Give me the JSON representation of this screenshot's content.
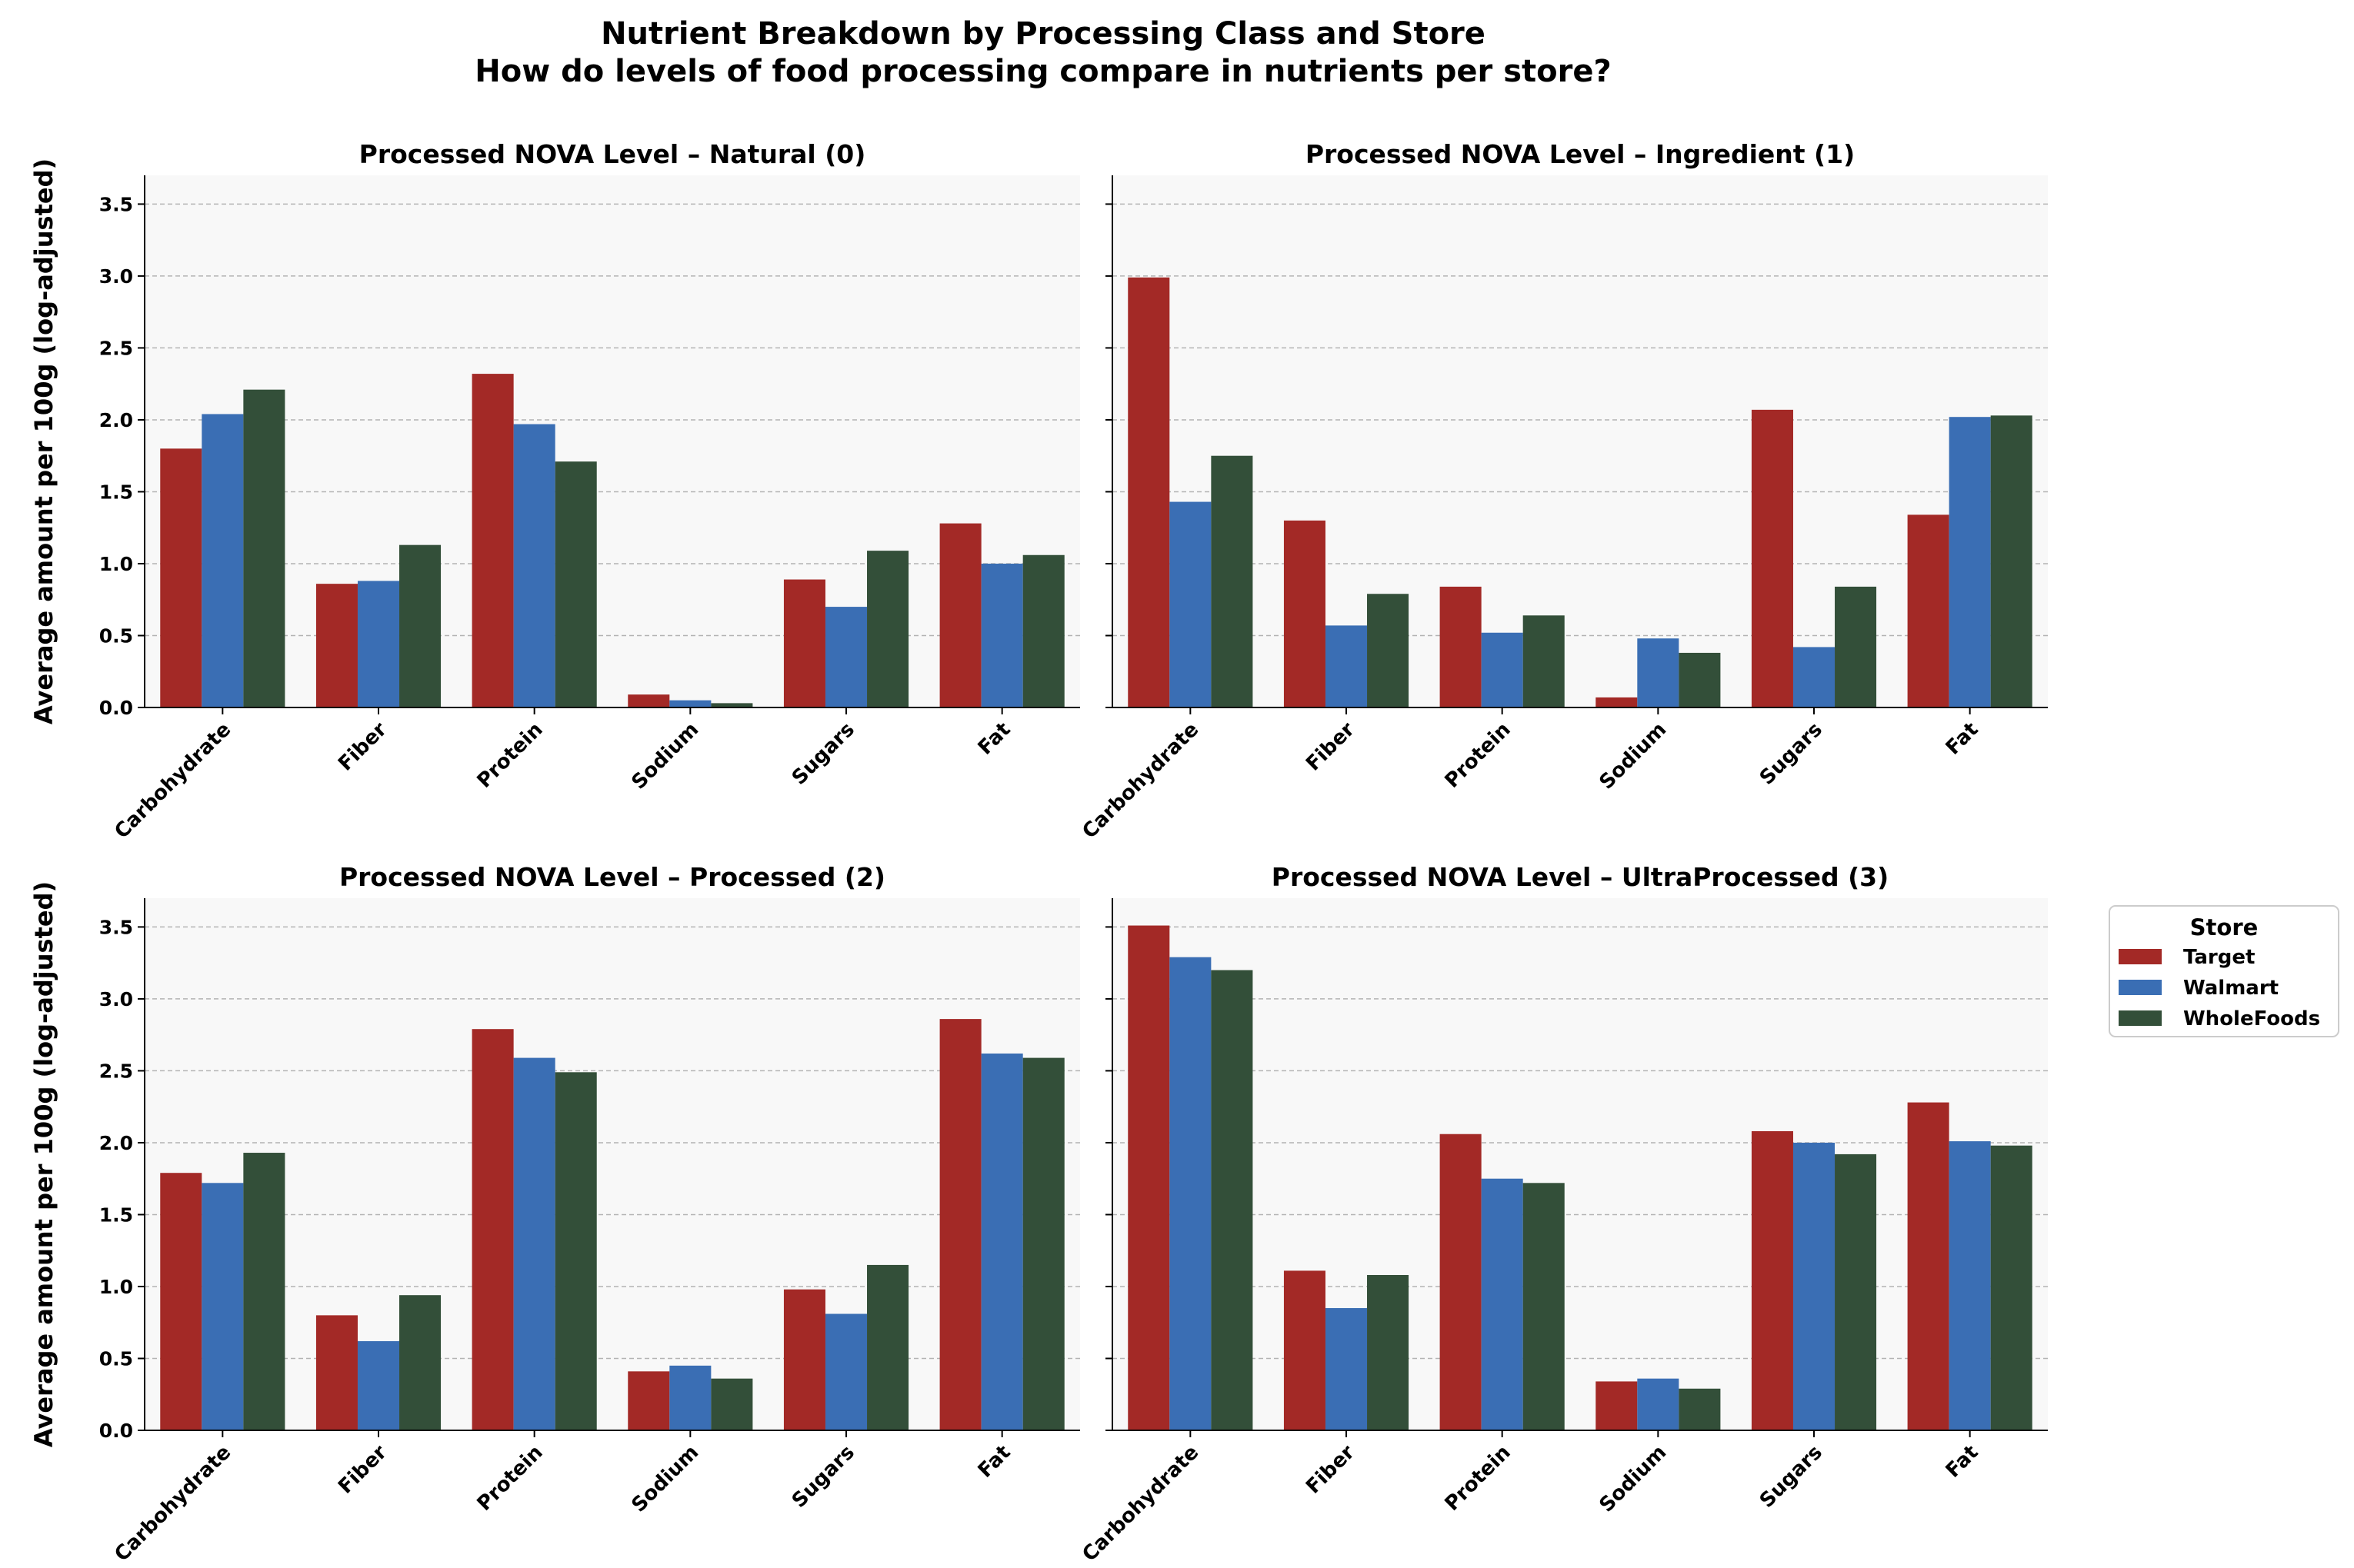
{
  "chart_data": {
    "type": "bar",
    "title": "Nutrient Breakdown by Processing Class and Store",
    "subtitle": "How do levels of food processing compare in nutrients per store?",
    "ylabel": "Average amount per 100g (log-adjusted)",
    "ylim": [
      0,
      3.7
    ],
    "yticks": [
      "0.0",
      "0.5",
      "1.0",
      "1.5",
      "2.0",
      "2.5",
      "3.0",
      "3.5"
    ],
    "grid": "horizontal dashed",
    "categories": [
      "Carbohydrate",
      "Fiber",
      "Protein",
      "Sodium",
      "Sugars",
      "Fat"
    ],
    "legend": {
      "title": "Store",
      "placement": "right",
      "entries": [
        {
          "name": "Target",
          "color": "#a32926"
        },
        {
          "name": "Walmart",
          "color": "#3a6eb4"
        },
        {
          "name": "WholeFoods",
          "color": "#334f39"
        }
      ]
    },
    "panels": [
      {
        "title": "Processed NOVA Level – Natural (0)",
        "series": [
          {
            "name": "Target",
            "values": [
              1.8,
              0.86,
              2.32,
              0.09,
              0.89,
              1.28
            ]
          },
          {
            "name": "Walmart",
            "values": [
              2.04,
              0.88,
              1.97,
              0.05,
              0.7,
              1.0
            ]
          },
          {
            "name": "WholeFoods",
            "values": [
              2.21,
              1.13,
              1.71,
              0.03,
              1.09,
              1.06
            ]
          }
        ]
      },
      {
        "title": "Processed NOVA Level – Ingredient (1)",
        "series": [
          {
            "name": "Target",
            "values": [
              2.99,
              1.3,
              0.84,
              0.07,
              2.07,
              1.34
            ]
          },
          {
            "name": "Walmart",
            "values": [
              1.43,
              0.57,
              0.52,
              0.48,
              0.42,
              2.02
            ]
          },
          {
            "name": "WholeFoods",
            "values": [
              1.75,
              0.79,
              0.64,
              0.38,
              0.84,
              2.03
            ]
          }
        ]
      },
      {
        "title": "Processed NOVA Level – Processed (2)",
        "series": [
          {
            "name": "Target",
            "values": [
              1.79,
              0.8,
              2.79,
              0.41,
              0.98,
              2.86
            ]
          },
          {
            "name": "Walmart",
            "values": [
              1.72,
              0.62,
              2.59,
              0.45,
              0.81,
              2.62
            ]
          },
          {
            "name": "WholeFoods",
            "values": [
              1.93,
              0.94,
              2.49,
              0.36,
              1.15,
              2.59
            ]
          }
        ]
      },
      {
        "title": "Processed NOVA Level – UltraProcessed (3)",
        "series": [
          {
            "name": "Target",
            "values": [
              3.51,
              1.11,
              2.06,
              0.34,
              2.08,
              2.28
            ]
          },
          {
            "name": "Walmart",
            "values": [
              3.29,
              0.85,
              1.75,
              0.36,
              2.0,
              2.01
            ]
          },
          {
            "name": "WholeFoods",
            "values": [
              3.2,
              1.08,
              1.72,
              0.29,
              1.92,
              1.98
            ]
          }
        ]
      }
    ]
  }
}
